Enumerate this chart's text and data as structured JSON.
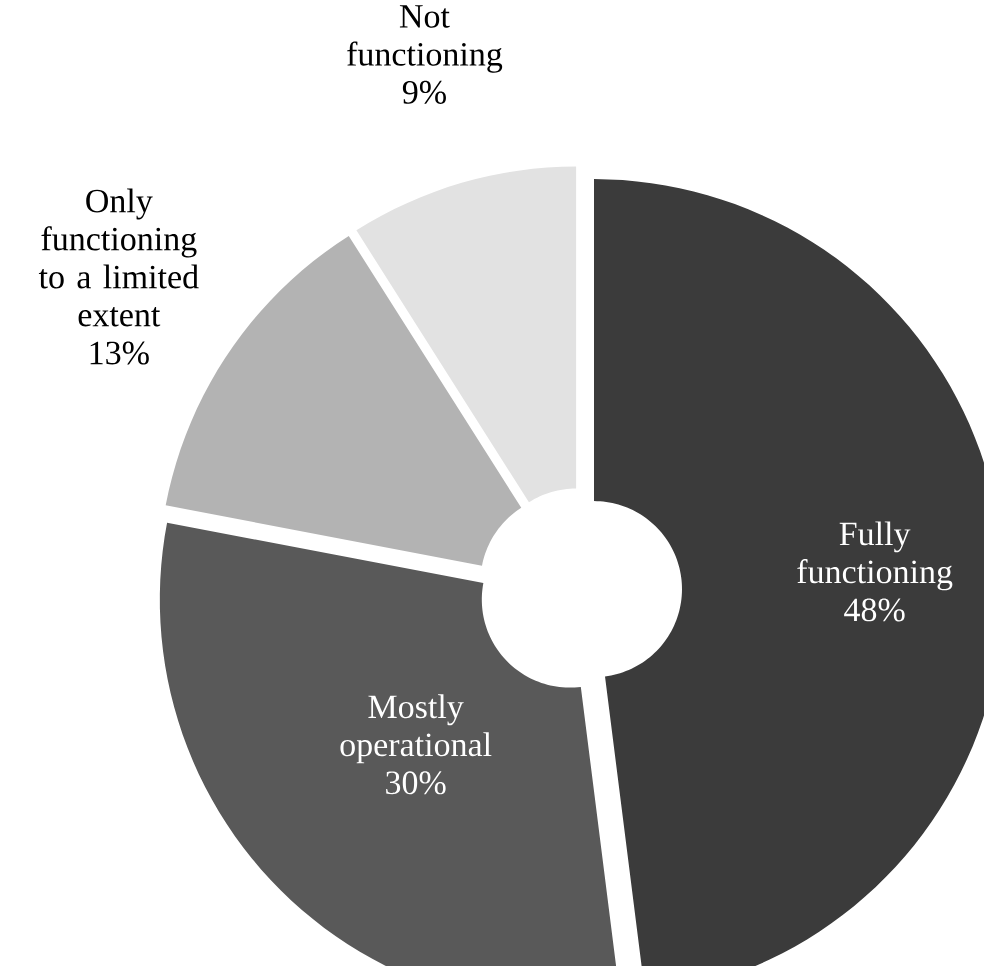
{
  "chart_data": {
    "type": "donut",
    "categories": [
      "Fully functioning",
      "Mostly operational",
      "Only functioning to a limited extent",
      "Not functioning"
    ],
    "values": [
      48,
      30,
      13,
      9
    ],
    "value_labels": [
      "48%",
      "30%",
      "13%",
      "9%"
    ],
    "colors": [
      "#3b3b3b",
      "#595959",
      "#b3b3b3",
      "#e2e2e2"
    ]
  }
}
